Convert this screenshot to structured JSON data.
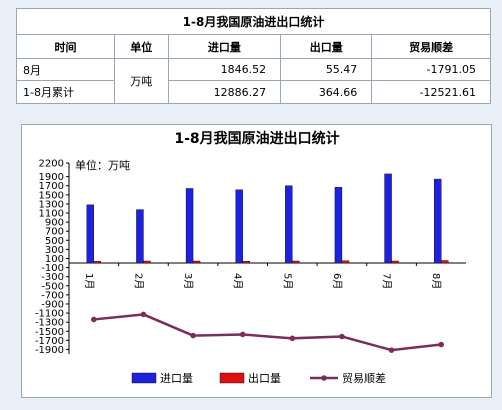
{
  "table": {
    "title": "1-8月我国原油进出口统计",
    "headers": [
      "时间",
      "单位",
      "进口量",
      "出口量",
      "贸易顺差"
    ],
    "unit": "万吨",
    "rows": [
      {
        "time": "8月",
        "import": "1846.52",
        "export": "55.47",
        "surplus": "-1791.05"
      },
      {
        "time": "1-8月累计",
        "import": "12886.27",
        "export": "364.66",
        "surplus": "-12521.61"
      }
    ]
  },
  "chart_data": {
    "type": "bar",
    "title": "1-8月我国原油进出口统计",
    "unit_note": "单位：万吨",
    "categories": [
      "1月",
      "2月",
      "3月",
      "4月",
      "5月",
      "6月",
      "7月",
      "8月"
    ],
    "ylim": [
      -2000,
      2200
    ],
    "yticks": [
      2200,
      1900,
      1700,
      1500,
      1300,
      1100,
      900,
      700,
      500,
      300,
      100,
      -100,
      -300,
      -500,
      -700,
      -900,
      -1100,
      -1300,
      -1500,
      -1700,
      -1900
    ],
    "series": [
      {
        "name": "进口量",
        "kind": "bar",
        "color": "#1e22e0",
        "values": [
          1280,
          1175,
          1640,
          1610,
          1700,
          1665,
          1960,
          1846.52
        ]
      },
      {
        "name": "出口量",
        "kind": "bar",
        "color": "#e01010",
        "values": [
          40,
          45,
          45,
          40,
          45,
          50,
          45,
          55.47
        ]
      },
      {
        "name": "贸易顺差",
        "kind": "line",
        "color": "#7b2d5e",
        "values": [
          -1240,
          -1130,
          -1595,
          -1570,
          -1655,
          -1615,
          -1915,
          -1791.05
        ]
      }
    ],
    "legend_position": "bottom"
  }
}
